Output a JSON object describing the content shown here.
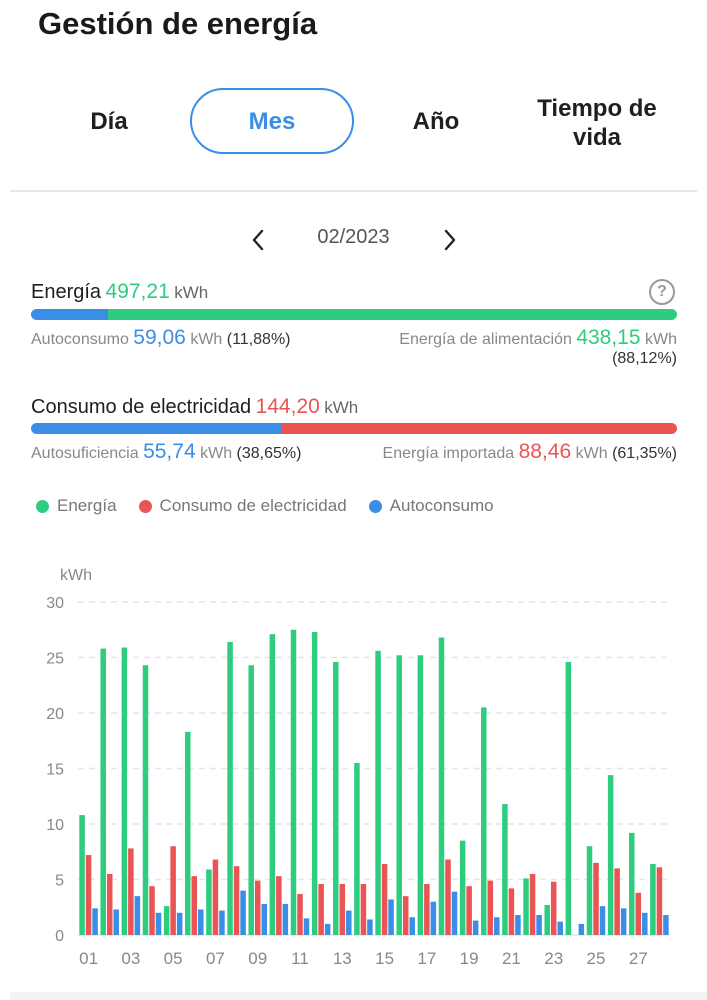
{
  "header": {
    "title": "Gestión de energía"
  },
  "tabs": [
    {
      "label": "Día",
      "active": false
    },
    {
      "label": "Mes",
      "active": true
    },
    {
      "label": "Año",
      "active": false
    },
    {
      "label": "Tiempo de vida",
      "active": false
    }
  ],
  "date_nav": {
    "value": "02/2023",
    "prev_icon": "chevron-left-icon",
    "next_icon": "chevron-right-icon"
  },
  "energy": {
    "label": "Energía",
    "value": "497,21",
    "unit": "kWh",
    "help_icon": "help-circle-icon",
    "self_consumption": {
      "label": "Autoconsumo",
      "value": "59,06",
      "unit": "kWh",
      "pct": "(11,88%)",
      "fraction": 0.1188
    },
    "feed_in": {
      "label": "Energía de alimentación",
      "value": "438,15",
      "unit": "kWh",
      "pct": "(88,12%)",
      "fraction": 0.8812
    }
  },
  "consumption": {
    "label": "Consumo de electricidad",
    "value": "144,20",
    "unit": "kWh",
    "self_sufficiency": {
      "label": "Autosuficiencia",
      "value": "55,74",
      "unit": "kWh",
      "pct": "(38,65%)",
      "fraction": 0.3865
    },
    "imported": {
      "label": "Energía importada",
      "value": "88,46",
      "unit": "kWh",
      "pct": "(61,35%)",
      "fraction": 0.6135
    }
  },
  "colors": {
    "green": "#2ecc7f",
    "red": "#ea5455",
    "blue": "#3a8ee6"
  },
  "chart_data": {
    "type": "bar",
    "ylabel": "kWh",
    "ylim": [
      0,
      30
    ],
    "yticks": [
      "0",
      "5",
      "10",
      "15",
      "20",
      "25",
      "30"
    ],
    "grid": true,
    "legend_position": "top-left",
    "categories": [
      "01",
      "02",
      "03",
      "04",
      "05",
      "06",
      "07",
      "08",
      "09",
      "10",
      "11",
      "12",
      "13",
      "14",
      "15",
      "16",
      "17",
      "18",
      "19",
      "20",
      "21",
      "22",
      "23",
      "24",
      "25",
      "26",
      "27",
      "28"
    ],
    "xtick_labels": [
      "01",
      "03",
      "05",
      "07",
      "09",
      "11",
      "13",
      "15",
      "17",
      "19",
      "21",
      "23",
      "25",
      "27"
    ],
    "series": [
      {
        "name": "Energía",
        "color": "#2ecc7f",
        "values": [
          10.8,
          25.8,
          25.9,
          24.3,
          2.6,
          18.3,
          5.9,
          26.4,
          24.3,
          27.1,
          27.5,
          27.3,
          24.6,
          15.5,
          25.6,
          25.2,
          25.2,
          26.8,
          8.5,
          20.5,
          11.8,
          5.1,
          2.7,
          24.6,
          8.0,
          14.4,
          9.2,
          6.4
        ]
      },
      {
        "name": "Consumo de electricidad",
        "color": "#ea5455",
        "values": [
          7.2,
          5.5,
          7.8,
          4.4,
          8.0,
          5.3,
          6.8,
          6.2,
          4.9,
          5.3,
          3.7,
          4.6,
          4.6,
          4.6,
          6.4,
          3.5,
          4.6,
          6.8,
          4.4,
          4.9,
          4.2,
          5.5,
          4.8,
          0,
          6.5,
          6.0,
          3.8,
          6.1
        ]
      },
      {
        "name": "Autoconsumo",
        "color": "#3a8ee6",
        "values": [
          2.4,
          2.3,
          3.5,
          2.0,
          2.0,
          2.3,
          2.2,
          4.0,
          2.8,
          2.8,
          1.5,
          1.0,
          2.2,
          1.4,
          3.2,
          1.6,
          3.0,
          3.9,
          1.3,
          1.6,
          1.8,
          1.8,
          1.2,
          1.0,
          2.6,
          2.4,
          2.0,
          1.8
        ]
      }
    ]
  }
}
